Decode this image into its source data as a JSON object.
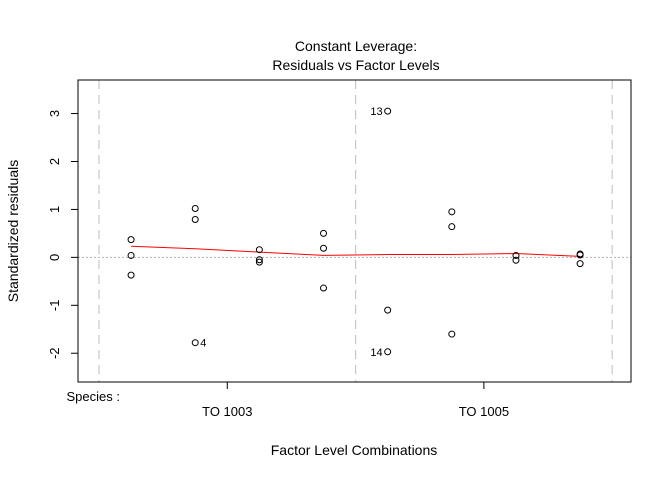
{
  "chart_data": {
    "type": "scatter",
    "title": "Constant Leverage:",
    "subtitle": "Residuals vs Factor Levels",
    "xlabel": "Factor Level Combinations",
    "ylabel": "Standardized residuals",
    "factor_label": "Species :",
    "ylim": [
      -2.6,
      3.7
    ],
    "yticks": [
      -2,
      -1,
      0,
      1,
      2,
      3
    ],
    "xlim": [
      0.5,
      2.5
    ],
    "group_ticks": [
      {
        "label": "TO 1003",
        "x": 1.0
      },
      {
        "label": "TO 1005",
        "x": 2.0
      }
    ],
    "group_boundaries": [
      0.5,
      1.5,
      2.5
    ],
    "reference_line": 0,
    "points": [
      {
        "x": 0.625,
        "y": 0.37
      },
      {
        "x": 0.625,
        "y": 0.04
      },
      {
        "x": 0.625,
        "y": -0.37
      },
      {
        "x": 0.875,
        "y": 1.02
      },
      {
        "x": 0.875,
        "y": 0.79
      },
      {
        "x": 0.875,
        "y": -1.78,
        "label": "4"
      },
      {
        "x": 1.125,
        "y": 0.16
      },
      {
        "x": 1.125,
        "y": -0.05
      },
      {
        "x": 1.125,
        "y": -0.1
      },
      {
        "x": 1.375,
        "y": 0.5
      },
      {
        "x": 1.375,
        "y": 0.19
      },
      {
        "x": 1.375,
        "y": -0.64
      },
      {
        "x": 1.625,
        "y": 3.05,
        "label": "13"
      },
      {
        "x": 1.625,
        "y": -1.1
      },
      {
        "x": 1.625,
        "y": -1.97,
        "label": "14"
      },
      {
        "x": 1.875,
        "y": 0.95
      },
      {
        "x": 1.875,
        "y": 0.64
      },
      {
        "x": 1.875,
        "y": -1.6
      },
      {
        "x": 2.125,
        "y": 0.04
      },
      {
        "x": 2.125,
        "y": -0.06
      },
      {
        "x": 2.375,
        "y": 0.07
      },
      {
        "x": 2.375,
        "y": 0.05
      },
      {
        "x": 2.375,
        "y": -0.13
      }
    ],
    "smooth_line": {
      "color": "#FF0000",
      "x": [
        0.625,
        0.875,
        1.125,
        1.375,
        1.625,
        1.875,
        2.125,
        2.375
      ],
      "y": [
        0.23,
        0.18,
        0.11,
        0.04,
        0.06,
        0.06,
        0.08,
        0.02
      ]
    },
    "colors": {
      "points": "#000000",
      "smooth": "#FF0000",
      "reference": "#B0B0B0",
      "boundaries": "#C8C8C8"
    }
  }
}
